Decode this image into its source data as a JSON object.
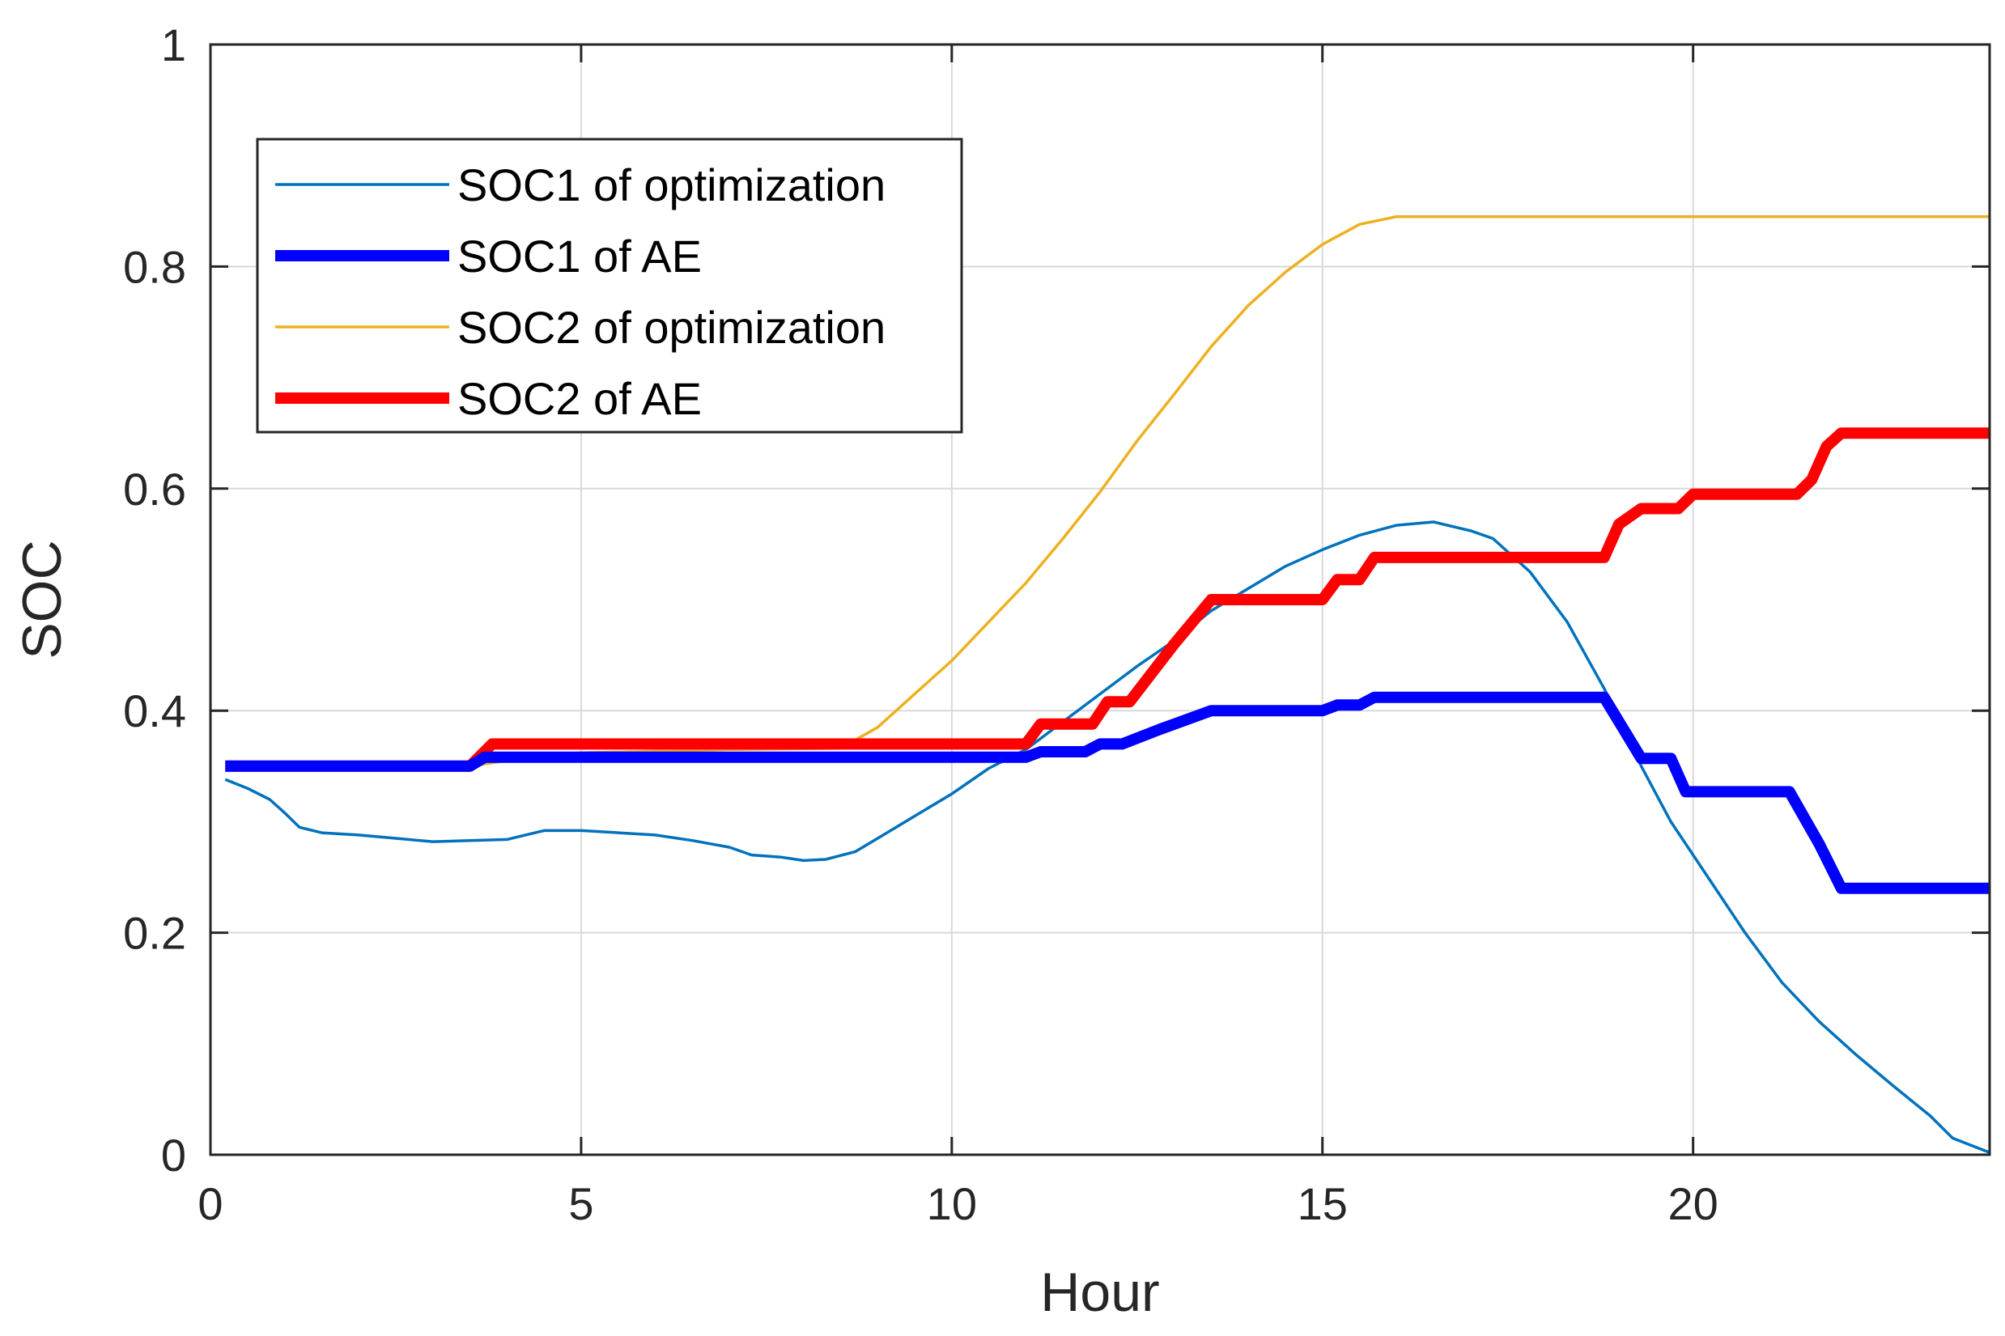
{
  "chart_data": {
    "type": "line",
    "title": "",
    "xlabel": "Hour",
    "ylabel": "SOC",
    "xlim": [
      0,
      24
    ],
    "ylim": [
      0,
      1
    ],
    "xticks": [
      0,
      5,
      10,
      15,
      20
    ],
    "xtick_labels": [
      "0",
      "5",
      "10",
      "15",
      "20"
    ],
    "yticks": [
      0,
      0.2,
      0.4,
      0.6,
      0.8,
      1
    ],
    "ytick_labels": [
      "0",
      "0.2",
      "0.4",
      "0.6",
      "0.8",
      "1"
    ],
    "grid": true,
    "legend_position": "top-left",
    "series": [
      {
        "name": "SOC1 of optimization",
        "color": "#0072BD",
        "line_width": "thin",
        "points": [
          [
            0.2,
            0.338
          ],
          [
            0.5,
            0.33
          ],
          [
            0.8,
            0.32
          ],
          [
            1.0,
            0.308
          ],
          [
            1.2,
            0.295
          ],
          [
            1.5,
            0.29
          ],
          [
            2.0,
            0.288
          ],
          [
            2.5,
            0.285
          ],
          [
            3.0,
            0.282
          ],
          [
            3.5,
            0.283
          ],
          [
            4.0,
            0.284
          ],
          [
            4.5,
            0.292
          ],
          [
            5.0,
            0.292
          ],
          [
            5.5,
            0.29
          ],
          [
            6.0,
            0.288
          ],
          [
            6.5,
            0.283
          ],
          [
            7.0,
            0.277
          ],
          [
            7.3,
            0.27
          ],
          [
            7.7,
            0.268
          ],
          [
            8.0,
            0.265
          ],
          [
            8.3,
            0.266
          ],
          [
            8.7,
            0.273
          ],
          [
            9.0,
            0.285
          ],
          [
            9.5,
            0.305
          ],
          [
            10.0,
            0.325
          ],
          [
            10.5,
            0.348
          ],
          [
            11.0,
            0.365
          ],
          [
            11.5,
            0.39
          ],
          [
            12.0,
            0.415
          ],
          [
            12.5,
            0.44
          ],
          [
            13.0,
            0.463
          ],
          [
            13.5,
            0.49
          ],
          [
            14.0,
            0.51
          ],
          [
            14.5,
            0.53
          ],
          [
            15.0,
            0.545
          ],
          [
            15.5,
            0.558
          ],
          [
            16.0,
            0.567
          ],
          [
            16.5,
            0.57
          ],
          [
            17.0,
            0.562
          ],
          [
            17.3,
            0.555
          ],
          [
            17.8,
            0.525
          ],
          [
            18.3,
            0.48
          ],
          [
            18.8,
            0.42
          ],
          [
            19.3,
            0.35
          ],
          [
            19.7,
            0.3
          ],
          [
            20.2,
            0.25
          ],
          [
            20.7,
            0.2
          ],
          [
            21.2,
            0.155
          ],
          [
            21.7,
            0.12
          ],
          [
            22.2,
            0.09
          ],
          [
            22.7,
            0.062
          ],
          [
            23.2,
            0.035
          ],
          [
            23.5,
            0.015
          ],
          [
            24.0,
            0.002
          ]
        ]
      },
      {
        "name": "SOC1 of AE",
        "color": "#0000FF",
        "line_width": "thick",
        "points": [
          [
            0.2,
            0.35
          ],
          [
            3.5,
            0.35
          ],
          [
            3.7,
            0.358
          ],
          [
            11.0,
            0.358
          ],
          [
            11.2,
            0.363
          ],
          [
            11.8,
            0.363
          ],
          [
            12.0,
            0.37
          ],
          [
            12.3,
            0.37
          ],
          [
            12.8,
            0.383
          ],
          [
            13.5,
            0.4
          ],
          [
            15.0,
            0.4
          ],
          [
            15.2,
            0.405
          ],
          [
            15.5,
            0.405
          ],
          [
            15.7,
            0.412
          ],
          [
            18.8,
            0.412
          ],
          [
            19.0,
            0.39
          ],
          [
            19.3,
            0.357
          ],
          [
            19.7,
            0.357
          ],
          [
            19.9,
            0.327
          ],
          [
            21.3,
            0.327
          ],
          [
            21.7,
            0.28
          ],
          [
            22.0,
            0.24
          ],
          [
            24.0,
            0.24
          ]
        ]
      },
      {
        "name": "SOC2 of optimization",
        "color": "#EDB120",
        "line_width": "thin",
        "points": [
          [
            0.2,
            0.35
          ],
          [
            3.5,
            0.35
          ],
          [
            4.0,
            0.355
          ],
          [
            4.5,
            0.36
          ],
          [
            5.0,
            0.362
          ],
          [
            7.0,
            0.365
          ],
          [
            8.5,
            0.366
          ],
          [
            9.0,
            0.385
          ],
          [
            9.5,
            0.415
          ],
          [
            10.0,
            0.445
          ],
          [
            10.5,
            0.48
          ],
          [
            11.0,
            0.515
          ],
          [
            11.5,
            0.555
          ],
          [
            12.0,
            0.597
          ],
          [
            12.5,
            0.643
          ],
          [
            13.0,
            0.685
          ],
          [
            13.5,
            0.728
          ],
          [
            14.0,
            0.765
          ],
          [
            14.5,
            0.795
          ],
          [
            15.0,
            0.82
          ],
          [
            15.5,
            0.838
          ],
          [
            16.0,
            0.845
          ],
          [
            24.0,
            0.845
          ]
        ]
      },
      {
        "name": "SOC2 of AE",
        "color": "#FF0000",
        "line_width": "thick",
        "points": [
          [
            0.2,
            0.35
          ],
          [
            3.5,
            0.35
          ],
          [
            3.8,
            0.37
          ],
          [
            11.0,
            0.37
          ],
          [
            11.2,
            0.388
          ],
          [
            11.9,
            0.388
          ],
          [
            12.1,
            0.408
          ],
          [
            12.4,
            0.408
          ],
          [
            13.0,
            0.46
          ],
          [
            13.5,
            0.5
          ],
          [
            15.0,
            0.5
          ],
          [
            15.2,
            0.518
          ],
          [
            15.5,
            0.518
          ],
          [
            15.7,
            0.538
          ],
          [
            18.8,
            0.538
          ],
          [
            19.0,
            0.568
          ],
          [
            19.3,
            0.582
          ],
          [
            19.8,
            0.582
          ],
          [
            20.0,
            0.595
          ],
          [
            21.1,
            0.595
          ],
          [
            21.4,
            0.595
          ],
          [
            21.6,
            0.608
          ],
          [
            21.8,
            0.638
          ],
          [
            22.0,
            0.65
          ],
          [
            24.0,
            0.65
          ]
        ]
      }
    ]
  }
}
